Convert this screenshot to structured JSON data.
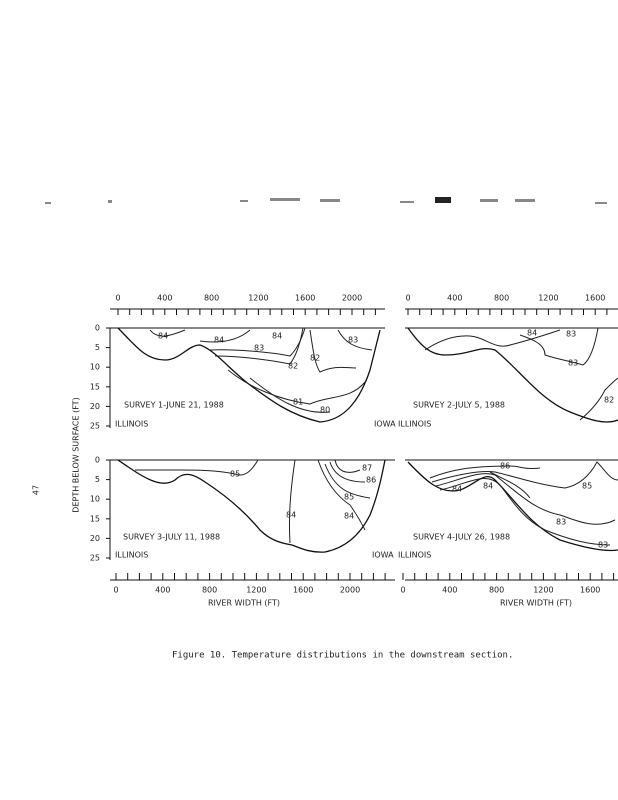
{
  "page_number": "47",
  "y_axis_label": "DEPTH BELOW SURFACE (FT)",
  "top_depth_ticks": [
    "0",
    "5",
    "10",
    "15",
    "20",
    "25"
  ],
  "bottom_depth_ticks": [
    "0",
    "5",
    "10",
    "15",
    "20",
    "25"
  ],
  "top_left_ticks": [
    "0",
    "400",
    "800",
    "1200",
    "1600",
    "2000"
  ],
  "top_right_ticks": [
    "0",
    "400",
    "800",
    "1200",
    "1600"
  ],
  "bottom_left_ticks": [
    "0",
    "400",
    "800",
    "1200",
    "1600",
    "2000"
  ],
  "bottom_right_ticks": [
    "0",
    "400",
    "800",
    "1200",
    "1600"
  ],
  "x_axis_label_left": "RIVER WIDTH (FT)",
  "x_axis_label_right": "RIVER WIDTH (FT)",
  "panels": [
    {
      "title": "SURVEY 1-JUNE 21, 1988",
      "left_bank": "ILLINOIS",
      "right_bank": "IOWA",
      "contour_labels": [
        "84",
        "84",
        "84",
        "83",
        "82",
        "82",
        "81",
        "80",
        "83"
      ]
    },
    {
      "title": "SURVEY 2-JULY 5, 1988",
      "left_bank": "ILLINOIS",
      "contour_labels": [
        "84",
        "83",
        "83",
        "82"
      ]
    },
    {
      "title": "SURVEY 3-JULY 11, 1988",
      "left_bank": "ILLINOIS",
      "right_bank": "IOWA",
      "contour_labels": [
        "85",
        "84",
        "87",
        "86",
        "85",
        "84"
      ]
    },
    {
      "title": "SURVEY 4-JULY 26, 1988",
      "left_bank": "ILLINOIS",
      "contour_labels": [
        "86",
        "84",
        "85",
        "83",
        "83",
        "84"
      ]
    }
  ],
  "caption": "Figure 10.  Temperature distributions in the downstream section."
}
